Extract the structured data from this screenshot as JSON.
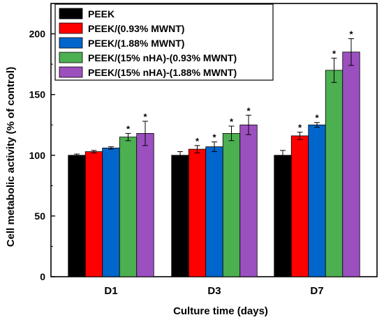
{
  "chart_data": {
    "type": "bar",
    "xlabel": "Culture time (days)",
    "ylabel": "Cell metabolic activity (% of control)",
    "ylim": [
      0,
      225
    ],
    "yticks": [
      0,
      50,
      100,
      150,
      200
    ],
    "categories": [
      "D1",
      "D3",
      "D7"
    ],
    "legend_position": "top-left",
    "series": [
      {
        "name": "PEEK",
        "color": "#000000",
        "values": [
          100,
          100,
          100
        ],
        "errors": [
          1,
          3,
          4
        ],
        "significant": [
          false,
          false,
          false
        ]
      },
      {
        "name": "PEEK/(0.93% MWNT)",
        "color": "#ff0000",
        "values": [
          103,
          105,
          116
        ],
        "errors": [
          1,
          3,
          3
        ],
        "significant": [
          false,
          true,
          true
        ]
      },
      {
        "name": "PEEK/(1.88% MWNT)",
        "color": "#0066cc",
        "values": [
          106,
          107,
          125
        ],
        "errors": [
          1,
          4,
          2
        ],
        "significant": [
          false,
          true,
          true
        ]
      },
      {
        "name": "PEEK/(15% nHA)-(0.93% MWNT)",
        "color": "#4caf50",
        "values": [
          115,
          118,
          170
        ],
        "errors": [
          3,
          6,
          10
        ],
        "significant": [
          true,
          true,
          true
        ]
      },
      {
        "name": "PEEK/(15% nHA)-(1.88% MWNT)",
        "color": "#9c50c0",
        "values": [
          118,
          125,
          185
        ],
        "errors": [
          10,
          8,
          11
        ],
        "significant": [
          true,
          true,
          true
        ]
      }
    ],
    "significance_marker": "*"
  }
}
